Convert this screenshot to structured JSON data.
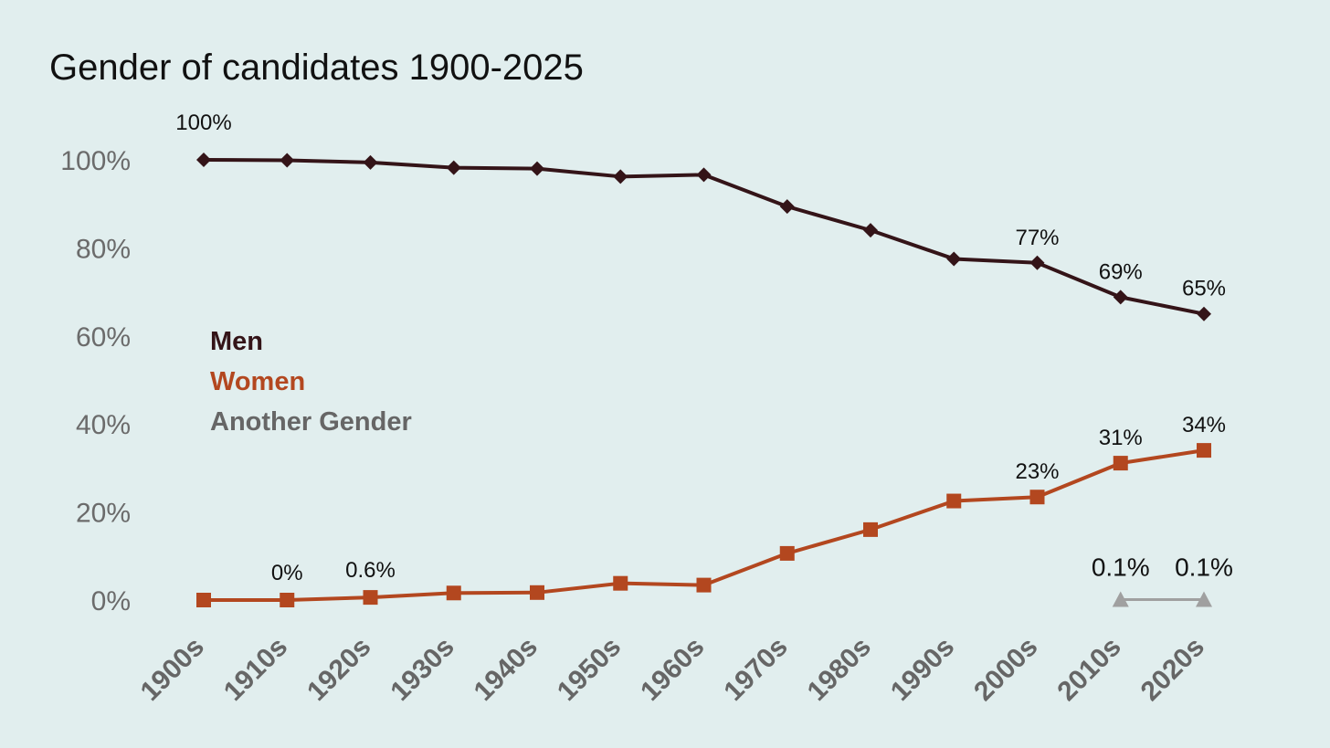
{
  "chart_data": {
    "type": "line",
    "title": "Gender of candidates 1900-2025",
    "xlabel": "",
    "ylabel": "",
    "ylim": [
      0,
      100
    ],
    "categories": [
      "1900s",
      "1910s",
      "1920s",
      "1930s",
      "1940s",
      "1950s",
      "1960s",
      "1970s",
      "1980s",
      "1990s",
      "2000s",
      "2010s",
      "2020s"
    ],
    "yticks": [
      "0%",
      "20%",
      "40%",
      "60%",
      "80%",
      "100%"
    ],
    "series": [
      {
        "name": "Men",
        "color": "#341418",
        "marker": "diamond",
        "values": [
          100,
          99.9,
          99.4,
          98.2,
          98.0,
          96.2,
          96.6,
          89.4,
          84.0,
          77.5,
          76.6,
          68.8,
          65.0
        ]
      },
      {
        "name": "Women",
        "color": "#b3471f",
        "marker": "square",
        "values": [
          0,
          0,
          0.6,
          1.6,
          1.7,
          3.8,
          3.4,
          10.6,
          16.0,
          22.5,
          23.4,
          31.1,
          34.0
        ]
      },
      {
        "name": "Another Gender",
        "color": "#a0a0a0",
        "marker": "triangle",
        "values": [
          null,
          null,
          null,
          null,
          null,
          null,
          null,
          null,
          null,
          null,
          null,
          0.1,
          0.1
        ]
      }
    ],
    "data_labels": [
      {
        "series": 0,
        "index": 0,
        "text": "100%"
      },
      {
        "series": 0,
        "index": 10,
        "text": "77%"
      },
      {
        "series": 0,
        "index": 11,
        "text": "69%"
      },
      {
        "series": 0,
        "index": 12,
        "text": "65%"
      },
      {
        "series": 1,
        "index": 1,
        "text": "0%"
      },
      {
        "series": 1,
        "index": 2,
        "text": "0.6%"
      },
      {
        "series": 1,
        "index": 10,
        "text": "23%"
      },
      {
        "series": 1,
        "index": 11,
        "text": "31%"
      },
      {
        "series": 1,
        "index": 12,
        "text": "34%"
      },
      {
        "series": 2,
        "index": 11,
        "text": "0.1%"
      },
      {
        "series": 2,
        "index": 12,
        "text": "0.1%"
      }
    ],
    "legend": [
      "Men",
      "Women",
      "Another Gender"
    ],
    "legend_colors": [
      "#341418",
      "#b3471f",
      "#666666"
    ],
    "legend_position": "left-middle",
    "grid": false
  }
}
